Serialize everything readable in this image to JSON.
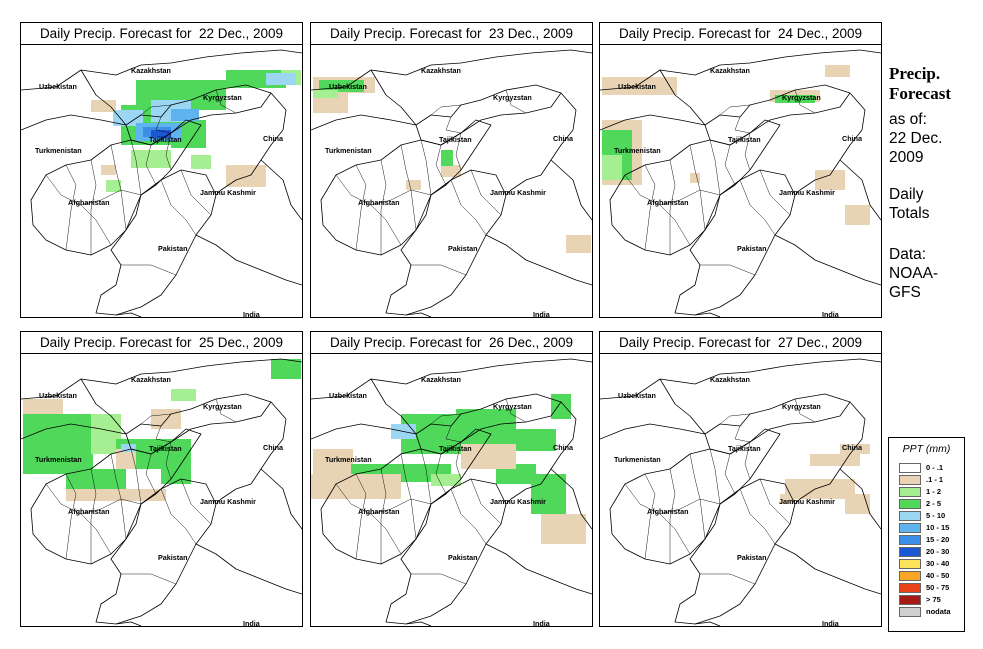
{
  "panels": [
    {
      "title": "Daily Precip. Forecast for  22 Dec., 2009"
    },
    {
      "title": "Daily Precip. Forecast for  23 Dec., 2009"
    },
    {
      "title": "Daily Precip. Forecast for  24 Dec., 2009"
    },
    {
      "title": "Daily Precip. Forecast for  25 Dec., 2009"
    },
    {
      "title": "Daily Precip. Forecast for  26 Dec., 2009"
    },
    {
      "title": "Daily Precip. Forecast for  27 Dec., 2009"
    }
  ],
  "map_labels": {
    "kazakhstan": "Kazakhstan",
    "uzbekistan": "Uzbekistan",
    "kyrgyzstan": "Kyrgyzstan",
    "tajikistan": "Tajikistan",
    "turkmenistan": "Turkmenistan",
    "china": "China",
    "jammu_kashmir": "Jammu Kashmir",
    "afghanistan": "Afghanistan",
    "pakistan": "Pakistan",
    "india": "India"
  },
  "sidebar": {
    "title_line1": "Precip.",
    "title_line2": "Forecast",
    "asof_line1": "as of:",
    "asof_line2": "22 Dec.",
    "asof_line3": "2009",
    "daily_line1": "Daily",
    "daily_line2": "Totals",
    "data_line1": "Data:",
    "data_line2": "NOAA-",
    "data_line3": "GFS"
  },
  "legend": {
    "title": "PPT (mm)",
    "items": [
      {
        "label": "0 - .1",
        "color": "#ffffff"
      },
      {
        "label": ".1 - 1",
        "color": "#e9d3b5"
      },
      {
        "label": "1 - 2",
        "color": "#a6ee92"
      },
      {
        "label": "2 - 5",
        "color": "#4fd85a"
      },
      {
        "label": "5 - 10",
        "color": "#9bd7f2"
      },
      {
        "label": "10 - 15",
        "color": "#5db4ee"
      },
      {
        "label": "15 - 20",
        "color": "#3c8ee6"
      },
      {
        "label": "20 - 30",
        "color": "#1c57d6"
      },
      {
        "label": "30 - 40",
        "color": "#fde35c"
      },
      {
        "label": "40 - 50",
        "color": "#f8a623"
      },
      {
        "label": "50 - 75",
        "color": "#e8421a"
      },
      {
        "label": "> 75",
        "color": "#a51a14"
      },
      {
        "label": "nodata",
        "color": "#cfcfcf"
      }
    ]
  }
}
